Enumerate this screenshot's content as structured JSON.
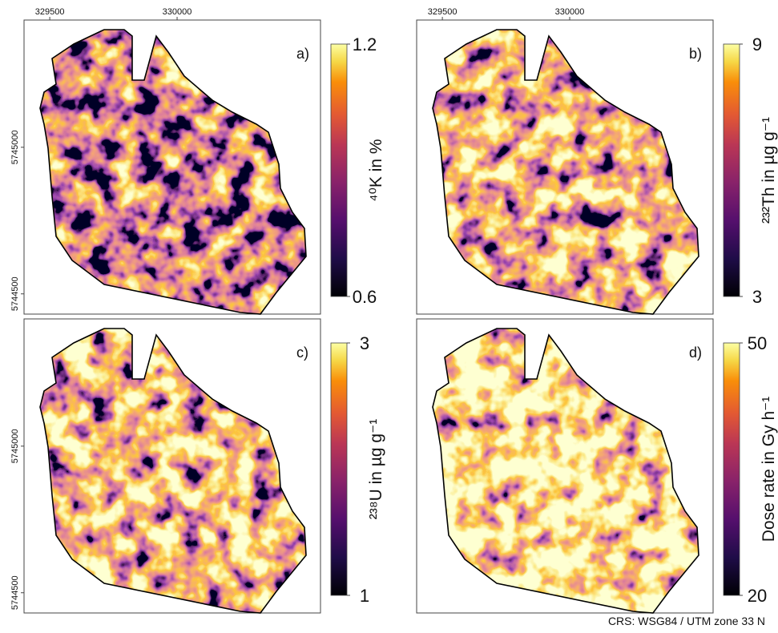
{
  "figure": {
    "axes": {
      "xlim": [
        329399,
        330563
      ],
      "xticks": [
        329500,
        330000
      ],
      "ylim": [
        5744431,
        5745434
      ],
      "yticks": [
        5744500,
        5745000
      ]
    },
    "panels": [
      {
        "label": "a)",
        "colorbar": {
          "title": "⁴⁰K in %",
          "lim": [
            0.6,
            1.2
          ],
          "ticks": [
            0.6,
            1.2
          ]
        }
      },
      {
        "label": "b)",
        "colorbar": {
          "title": "²³²Th in µg g⁻¹",
          "lim": [
            3,
            9
          ],
          "ticks": [
            3,
            9
          ]
        }
      },
      {
        "label": "c)",
        "colorbar": {
          "title": "²³⁸U in µg g⁻¹",
          "lim": [
            1,
            3
          ],
          "ticks": [
            1,
            3
          ]
        }
      },
      {
        "label": "d)",
        "colorbar": {
          "title": "Dose rate in Gy h⁻¹",
          "lim": [
            20,
            50
          ],
          "ticks": [
            20,
            50
          ]
        }
      }
    ],
    "crs": "CRS: WSG84 / UTM zone 33 N"
  }
}
